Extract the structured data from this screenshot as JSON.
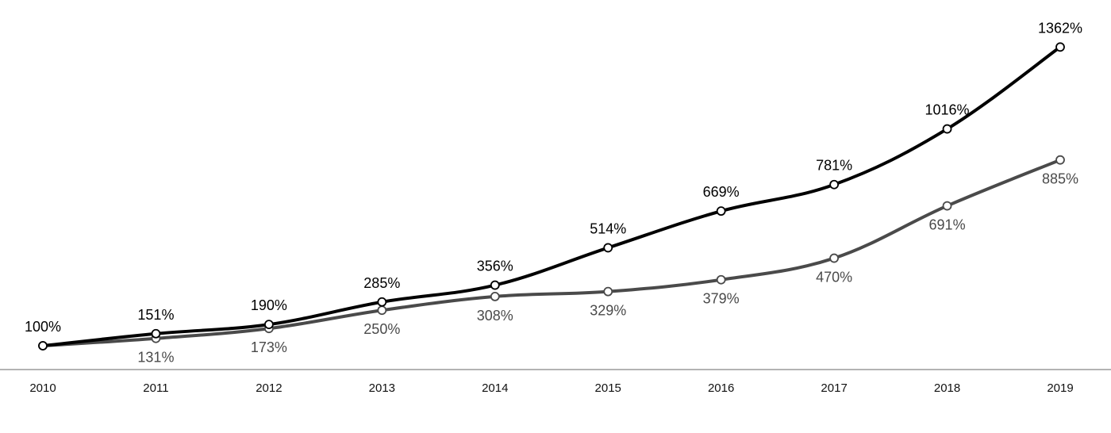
{
  "chart_data": {
    "type": "line",
    "title": "",
    "xlabel": "",
    "ylabel": "",
    "x": [
      "2010",
      "2011",
      "2012",
      "2013",
      "2014",
      "2015",
      "2016",
      "2017",
      "2018",
      "2019"
    ],
    "ylim": [
      0,
      1450
    ],
    "grid": false,
    "legend": "none",
    "series": [
      {
        "color": "#000000",
        "label_position": "above",
        "values": [
          100,
          151,
          190,
          285,
          356,
          514,
          669,
          781,
          1016,
          1362
        ],
        "labels": [
          "100%",
          "151%",
          "190%",
          "285%",
          "356%",
          "514%",
          "669%",
          "781%",
          "1016%",
          "1362%"
        ]
      },
      {
        "color": "#4a4a4a",
        "label_position": "below",
        "values": [
          100,
          131,
          173,
          250,
          308,
          329,
          379,
          470,
          691,
          885
        ],
        "labels": [
          "",
          "131%",
          "173%",
          "250%",
          "308%",
          "329%",
          "379%",
          "470%",
          "691%",
          "885%"
        ]
      }
    ]
  }
}
